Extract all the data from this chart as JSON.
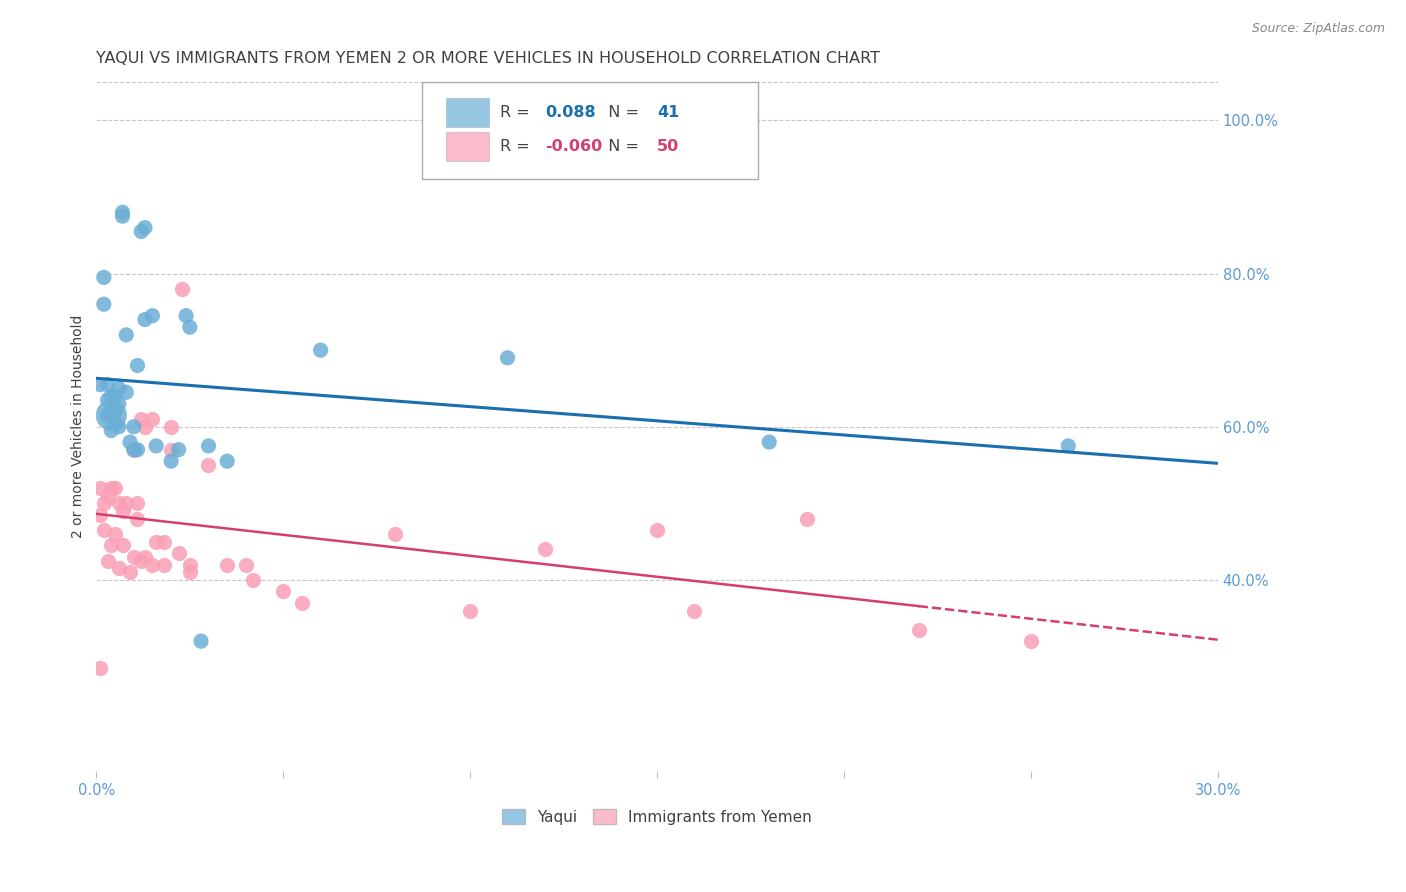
{
  "title": "YAQUI VS IMMIGRANTS FROM YEMEN 2 OR MORE VEHICLES IN HOUSEHOLD CORRELATION CHART",
  "source": "Source: ZipAtlas.com",
  "ylabel": "2 or more Vehicles in Household",
  "xlim": [
    0.0,
    0.3
  ],
  "ylim": [
    0.15,
    1.05
  ],
  "xticks": [
    0.0,
    0.05,
    0.1,
    0.15,
    0.2,
    0.25,
    0.3
  ],
  "xtick_labels": [
    "0.0%",
    "",
    "",
    "",
    "",
    "",
    "30.0%"
  ],
  "yticks_right": [
    1.0,
    0.8,
    0.6,
    0.4
  ],
  "ytick_right_labels": [
    "100.0%",
    "80.0%",
    "60.0%",
    "40.0%"
  ],
  "blue_color": "#6baed6",
  "pink_color": "#fa9fb5",
  "trend_blue": "#1a6faf",
  "trend_pink": "#d43f6e",
  "background_color": "#ffffff",
  "grid_color": "#c8c8c8",
  "axis_label_color": "#5b9bd5",
  "title_color": "#404040",
  "title_fontsize": 11.5,
  "ylabel_fontsize": 10,
  "tick_label_fontsize": 10.5,
  "yaqui_x": [
    0.001,
    0.002,
    0.002,
    0.003,
    0.003,
    0.003,
    0.004,
    0.004,
    0.004,
    0.004,
    0.005,
    0.005,
    0.005,
    0.006,
    0.006,
    0.006,
    0.007,
    0.007,
    0.008,
    0.008,
    0.009,
    0.01,
    0.01,
    0.011,
    0.011,
    0.012,
    0.013,
    0.013,
    0.015,
    0.016,
    0.02,
    0.022,
    0.024,
    0.025,
    0.028,
    0.03,
    0.035,
    0.06,
    0.11,
    0.18,
    0.26
  ],
  "yaqui_y": [
    0.655,
    0.795,
    0.76,
    0.655,
    0.635,
    0.615,
    0.64,
    0.62,
    0.595,
    0.615,
    0.64,
    0.62,
    0.605,
    0.65,
    0.63,
    0.6,
    0.88,
    0.875,
    0.645,
    0.72,
    0.58,
    0.57,
    0.6,
    0.68,
    0.57,
    0.855,
    0.86,
    0.74,
    0.745,
    0.575,
    0.555,
    0.57,
    0.745,
    0.73,
    0.32,
    0.575,
    0.555,
    0.7,
    0.69,
    0.58,
    0.575
  ],
  "yaqui_sizes": [
    120,
    120,
    120,
    120,
    120,
    120,
    120,
    120,
    120,
    120,
    120,
    120,
    120,
    120,
    120,
    120,
    120,
    120,
    120,
    120,
    120,
    120,
    120,
    120,
    120,
    120,
    120,
    120,
    120,
    120,
    120,
    120,
    120,
    120,
    120,
    120,
    120,
    120,
    120,
    120,
    120
  ],
  "yaqui_large_idx": 9,
  "yaqui_large_size": 500,
  "yemen_x": [
    0.001,
    0.001,
    0.001,
    0.002,
    0.002,
    0.003,
    0.003,
    0.004,
    0.004,
    0.005,
    0.005,
    0.006,
    0.006,
    0.007,
    0.007,
    0.008,
    0.009,
    0.01,
    0.01,
    0.011,
    0.011,
    0.012,
    0.012,
    0.013,
    0.013,
    0.015,
    0.015,
    0.016,
    0.018,
    0.018,
    0.02,
    0.02,
    0.022,
    0.023,
    0.025,
    0.025,
    0.03,
    0.035,
    0.04,
    0.042,
    0.05,
    0.055,
    0.08,
    0.1,
    0.12,
    0.15,
    0.16,
    0.19,
    0.22,
    0.25
  ],
  "yemen_y": [
    0.52,
    0.485,
    0.285,
    0.5,
    0.465,
    0.51,
    0.425,
    0.52,
    0.445,
    0.52,
    0.46,
    0.415,
    0.5,
    0.49,
    0.445,
    0.5,
    0.41,
    0.57,
    0.43,
    0.5,
    0.48,
    0.425,
    0.61,
    0.43,
    0.6,
    0.61,
    0.42,
    0.45,
    0.45,
    0.42,
    0.6,
    0.57,
    0.435,
    0.78,
    0.42,
    0.41,
    0.55,
    0.42,
    0.42,
    0.4,
    0.385,
    0.37,
    0.46,
    0.36,
    0.44,
    0.465,
    0.36,
    0.48,
    0.335,
    0.32
  ],
  "trend_blue_start_x": 0.0,
  "trend_blue_end_x": 0.3,
  "trend_pink_solid_end": 0.22,
  "trend_pink_end_x": 0.3
}
